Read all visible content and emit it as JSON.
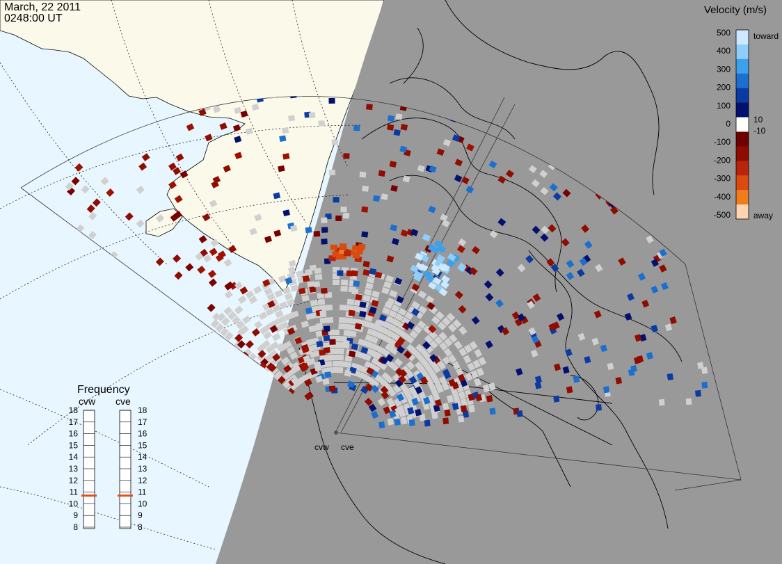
{
  "header": {
    "date": "March, 22 2011",
    "time": "0248:00 UT"
  },
  "velocity_scale": {
    "title": "Velocity (m/s)",
    "ticks": [
      "500",
      "400",
      "300",
      "200",
      "100",
      "0",
      "-100",
      "-200",
      "-300",
      "-400",
      "-500"
    ],
    "toward_label": "toward",
    "away_label": "away",
    "pos_threshold": "10",
    "neg_threshold": "-10",
    "colors": [
      "#cde9ff",
      "#8fcdfa",
      "#3ca0ec",
      "#1b6fcf",
      "#0b3aa3",
      "#03106e",
      "#ffffff",
      "#6e0000",
      "#8f0c00",
      "#b8240c",
      "#db4b0f",
      "#f07d1c",
      "#ffd4b0"
    ]
  },
  "frequency_panel": {
    "title": "Frequency",
    "radars": [
      {
        "name": "cvw",
        "value": 10.7
      },
      {
        "name": "cve",
        "value": 10.7
      }
    ],
    "ticks": [
      "18",
      "17",
      "16",
      "15",
      "14",
      "13",
      "12",
      "11",
      "10",
      "9",
      "8"
    ],
    "marker_color": "#e0501e"
  },
  "map": {
    "radar_sites": [
      "cvw",
      "cve"
    ],
    "night_color": "#999999",
    "day_ocean_color": "#e8f6ff",
    "day_land_color": "#fbf9ea",
    "ground_scatter_color": "#d0d0d0"
  }
}
